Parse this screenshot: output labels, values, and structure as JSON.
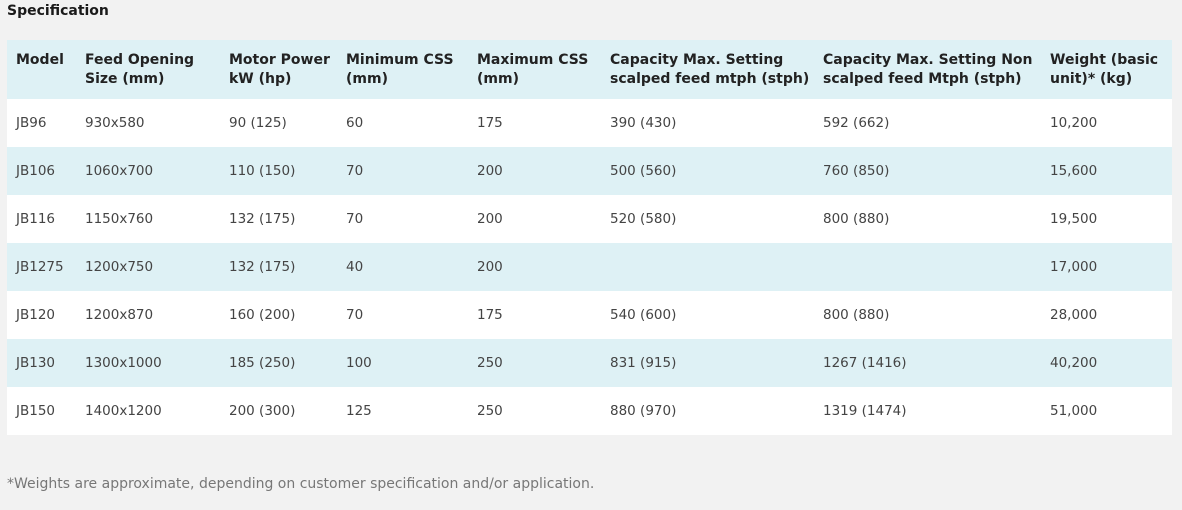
{
  "title": "Specification",
  "table": {
    "headers": [
      "Model",
      "Feed Opening Size (mm)",
      "Motor Power kW (hp)",
      "Minimum CSS (mm)",
      "Maximum CSS (mm)",
      "Capacity Max. Setting scalped feed mtph (stph)",
      "Capacity Max. Setting Non scalped feed Mtph (stph)",
      "Weight (basic unit)* (kg)"
    ],
    "rows": [
      [
        "JB96",
        "930x580",
        "90 (125)",
        "60",
        "175",
        "390 (430)",
        "592 (662)",
        "10,200"
      ],
      [
        "JB106",
        "1060x700",
        "110 (150)",
        "70",
        "200",
        "500 (560)",
        "760 (850)",
        "15,600"
      ],
      [
        "JB116",
        "1150x760",
        "132 (175)",
        "70",
        "200",
        "520 (580)",
        "800 (880)",
        "19,500"
      ],
      [
        "JB1275",
        "1200x750",
        "132 (175)",
        "40",
        "200",
        "",
        "",
        "17,000"
      ],
      [
        "JB120",
        "1200x870",
        "160 (200)",
        "70",
        "175",
        "540 (600)",
        "800 (880)",
        "28,000"
      ],
      [
        "JB130",
        "1300x1000",
        "185 (250)",
        "100",
        "250",
        "831 (915)",
        "1267 (1416)",
        "40,200"
      ],
      [
        "JB150",
        "1400x1200",
        "200 (300)",
        "125",
        "250",
        "880 (970)",
        "1319 (1474)",
        "51,000"
      ]
    ]
  },
  "footnote": "*Weights are approximate, depending on customer specification and/or application.",
  "colors": {
    "header_bg": "#def1f5",
    "alt_row_bg": "#def1f5",
    "row_bg": "#ffffff",
    "page_bg": "#f2f2f2"
  }
}
